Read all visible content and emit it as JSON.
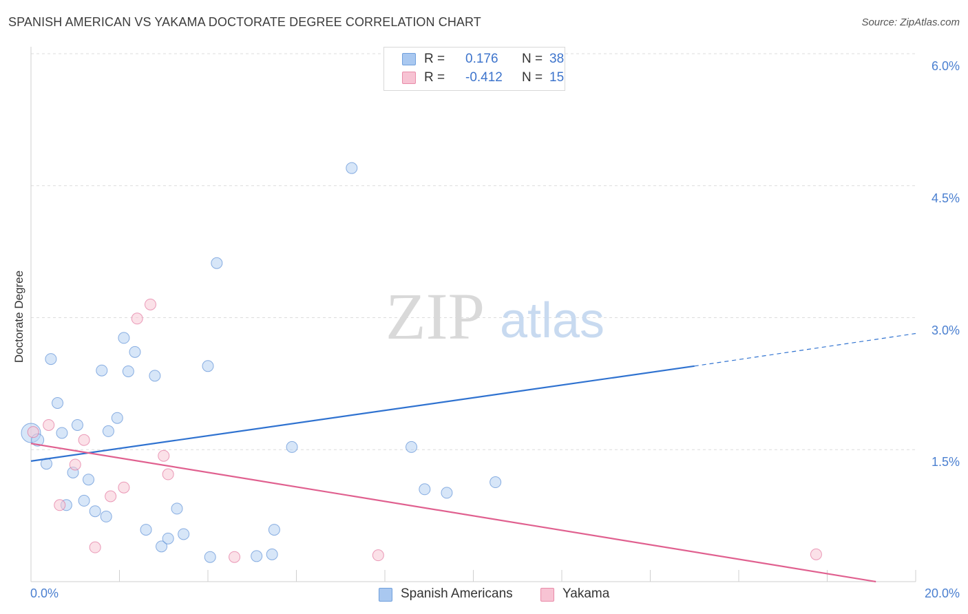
{
  "header": {
    "title": "SPANISH AMERICAN VS YAKAMA DOCTORATE DEGREE CORRELATION CHART",
    "source": "Source: ZipAtlas.com"
  },
  "watermark": {
    "zip": "ZIP",
    "atlas": "atlas"
  },
  "legend": {
    "r_label": "R =",
    "n_label": "N =",
    "rows": [
      {
        "name": "Spanish Americans",
        "r": "0.176",
        "n": "38",
        "color": "#a9c8f0",
        "border": "#6f9fdc"
      },
      {
        "name": "Yakama",
        "r": "-0.412",
        "n": "15",
        "color": "#f7c3d3",
        "border": "#e98aa8"
      }
    ]
  },
  "chart_data": {
    "type": "scatter",
    "title": "SPANISH AMERICAN VS YAKAMA DOCTORATE DEGREE CORRELATION CHART",
    "xlabel": "",
    "ylabel": "Doctorate Degree",
    "xlim": [
      0,
      20
    ],
    "ylim": [
      0,
      6.2
    ],
    "x_tick_labels": {
      "min": "0.0%",
      "max": "20.0%"
    },
    "y_ticks": [
      {
        "value": 1.5,
        "label": "1.5%"
      },
      {
        "value": 3.0,
        "label": "3.0%"
      },
      {
        "value": 4.5,
        "label": "4.5%"
      },
      {
        "value": 6.0,
        "label": "6.0%"
      }
    ],
    "series": [
      {
        "name": "Spanish Americans",
        "color": "#5b8fd6",
        "fill": "#b7d1f2",
        "trend": {
          "x0": 0,
          "y0": 1.37,
          "x1": 15,
          "y1": 2.45,
          "dash_to_x": 20,
          "dash_to_y": 2.82
        },
        "points": [
          [
            0.0,
            1.69,
            14
          ],
          [
            0.15,
            1.61,
            9
          ],
          [
            0.35,
            1.34,
            8
          ],
          [
            0.45,
            2.53,
            8
          ],
          [
            0.6,
            2.03,
            8
          ],
          [
            0.7,
            1.69,
            8
          ],
          [
            0.8,
            0.87,
            8
          ],
          [
            0.95,
            1.24,
            8
          ],
          [
            1.05,
            1.78,
            8
          ],
          [
            1.2,
            0.92,
            8
          ],
          [
            1.3,
            1.16,
            8
          ],
          [
            1.45,
            0.8,
            8
          ],
          [
            1.6,
            2.4,
            8
          ],
          [
            1.7,
            0.74,
            8
          ],
          [
            1.75,
            1.71,
            8
          ],
          [
            1.95,
            1.86,
            8
          ],
          [
            2.1,
            2.77,
            8
          ],
          [
            2.2,
            2.39,
            8
          ],
          [
            2.35,
            2.61,
            8
          ],
          [
            2.6,
            0.59,
            8
          ],
          [
            2.8,
            2.34,
            8
          ],
          [
            2.95,
            0.4,
            8
          ],
          [
            3.1,
            0.49,
            8
          ],
          [
            3.3,
            0.83,
            8
          ],
          [
            3.45,
            0.54,
            8
          ],
          [
            4.0,
            2.45,
            8
          ],
          [
            4.05,
            0.28,
            8
          ],
          [
            4.2,
            3.62,
            8
          ],
          [
            5.1,
            0.29,
            8
          ],
          [
            5.45,
            0.31,
            8
          ],
          [
            5.5,
            0.59,
            8
          ],
          [
            5.9,
            1.53,
            8
          ],
          [
            7.25,
            4.7,
            8
          ],
          [
            8.6,
            1.53,
            8
          ],
          [
            8.9,
            1.05,
            8
          ],
          [
            9.4,
            1.01,
            8
          ],
          [
            10.5,
            1.13,
            8
          ]
        ]
      },
      {
        "name": "Yakama",
        "color": "#e3749d",
        "fill": "#f8c8d6",
        "trend": {
          "x0": 0,
          "y0": 1.57,
          "x1": 19.1,
          "y1": 0.0
        },
        "points": [
          [
            0.05,
            1.7,
            8
          ],
          [
            0.4,
            1.78,
            8
          ],
          [
            0.65,
            0.87,
            8
          ],
          [
            1.0,
            1.33,
            8
          ],
          [
            1.2,
            1.61,
            8
          ],
          [
            1.45,
            0.39,
            8
          ],
          [
            1.8,
            0.97,
            8
          ],
          [
            2.1,
            1.07,
            8
          ],
          [
            2.4,
            2.99,
            8
          ],
          [
            2.7,
            3.15,
            8
          ],
          [
            3.0,
            1.43,
            8
          ],
          [
            3.1,
            1.22,
            8
          ],
          [
            4.6,
            0.28,
            8
          ],
          [
            7.85,
            0.3,
            8
          ],
          [
            17.75,
            0.31,
            8
          ]
        ]
      }
    ]
  }
}
